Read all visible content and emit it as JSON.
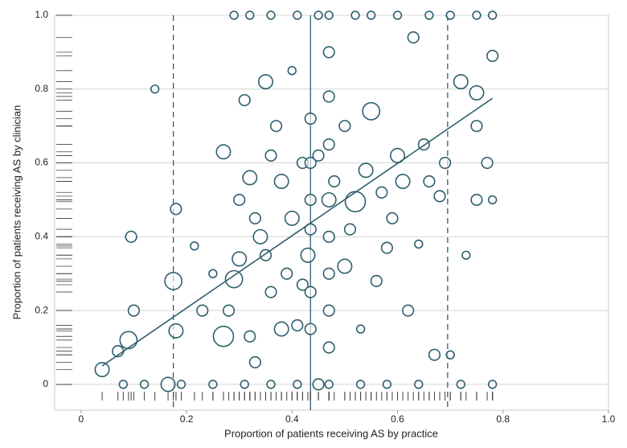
{
  "chart_data": {
    "type": "scatter",
    "x_label": "Proportion of patients receiving AS by practice",
    "y_label": "Proportion of patients receiving AS by clinician",
    "xlim": [
      -0.05,
      1.0
    ],
    "ylim": [
      -0.07,
      1.0
    ],
    "xticks": [
      0,
      0.2,
      0.4,
      0.6,
      0.8,
      {
        "value": 1,
        "label": "1.0"
      }
    ],
    "yticks": [
      0,
      0.2,
      0.4,
      0.6,
      0.8,
      {
        "value": 1,
        "label": "1.0"
      }
    ],
    "grid": true,
    "color": "#2e5e6e",
    "x": [
      0.04,
      0.07,
      0.09,
      0.1,
      0.095,
      0.14,
      0.165,
      0.175,
      0.18,
      0.18,
      0.215,
      0.23,
      0.27,
      0.27,
      0.29,
      0.3,
      0.3,
      0.31,
      0.32,
      0.33,
      0.34,
      0.35,
      0.36,
      0.37,
      0.38,
      0.39,
      0.4,
      0.41,
      0.42,
      0.43,
      0.435,
      0.435,
      0.435,
      0.435,
      0.435,
      0.435,
      0.45,
      0.47,
      0.47,
      0.47,
      0.47,
      0.47,
      0.47,
      0.47,
      0.47,
      0.48,
      0.5,
      0.52,
      0.54,
      0.55,
      0.56,
      0.58,
      0.6,
      0.62,
      0.63,
      0.65,
      0.67,
      0.68,
      0.7,
      0.72,
      0.75,
      0.75,
      0.75,
      0.77,
      0.78,
      0.78,
      0.29,
      0.32,
      0.36,
      0.41,
      0.45,
      0.47,
      0.52,
      0.55,
      0.6,
      0.66,
      0.7,
      0.75,
      0.78,
      0.08,
      0.12,
      0.19,
      0.25,
      0.31,
      0.36,
      0.41,
      0.47,
      0.53,
      0.58,
      0.64,
      0.72,
      0.78,
      0.25,
      0.28,
      0.33,
      0.36,
      0.38,
      0.4,
      0.42,
      0.45,
      0.5,
      0.51,
      0.53,
      0.57,
      0.59,
      0.61,
      0.64,
      0.66,
      0.69,
      0.73,
      0.32,
      0.35
    ],
    "y": [
      0.04,
      0.09,
      0.12,
      0.2,
      0.4,
      0.8,
      0.0,
      0.28,
      0.475,
      0.145,
      0.375,
      0.2,
      0.13,
      0.63,
      0.285,
      0.5,
      0.34,
      0.77,
      0.56,
      0.06,
      0.4,
      0.82,
      0.25,
      0.7,
      0.55,
      0.3,
      0.45,
      0.16,
      0.6,
      0.35,
      0.5,
      0.72,
      0.25,
      0.42,
      0.6,
      0.15,
      0.0,
      0.1,
      0.3,
      0.5,
      0.65,
      0.78,
      0.9,
      0.2,
      0.4,
      0.55,
      0.32,
      0.495,
      0.58,
      0.74,
      0.28,
      0.37,
      0.62,
      0.2,
      0.94,
      0.65,
      0.08,
      0.51,
      0.08,
      0.82,
      0.79,
      0.7,
      0.5,
      0.6,
      0.5,
      0.89,
      1.0,
      1.0,
      1.0,
      1.0,
      1.0,
      1.0,
      1.0,
      1.0,
      1.0,
      1.0,
      1.0,
      1.0,
      1.0,
      0.0,
      0.0,
      0.0,
      0.0,
      0.0,
      0.0,
      0.0,
      0.0,
      0.0,
      0.0,
      0.0,
      0.0,
      0.0,
      0.3,
      0.2,
      0.45,
      0.62,
      0.15,
      0.85,
      0.27,
      0.62,
      0.7,
      0.42,
      0.15,
      0.52,
      0.45,
      0.55,
      0.38,
      0.55,
      0.6,
      0.35,
      0.13,
      0.35
    ],
    "sizes": [
      3,
      2,
      4,
      2,
      2,
      1,
      3,
      4,
      2,
      3,
      1,
      2,
      5,
      3,
      4,
      2,
      3,
      2,
      3,
      2,
      3,
      3,
      2,
      2,
      3,
      2,
      3,
      2,
      2,
      3,
      2,
      2,
      2,
      2,
      2,
      2,
      2,
      2,
      2,
      3,
      2,
      2,
      2,
      2,
      2,
      2,
      3,
      5,
      3,
      4,
      2,
      2,
      3,
      2,
      2,
      2,
      2,
      2,
      1,
      3,
      3,
      2,
      2,
      2,
      1,
      2,
      1,
      1,
      1,
      1,
      1,
      1,
      1,
      1,
      1,
      1,
      1,
      1,
      1,
      1,
      1,
      1,
      1,
      1,
      1,
      1,
      1,
      1,
      1,
      1,
      1,
      1,
      1,
      2,
      2,
      2,
      3,
      1,
      2,
      2,
      2,
      2,
      1,
      2,
      2,
      3,
      1,
      2,
      2,
      1,
      2,
      2
    ],
    "fit_line": {
      "x": [
        0.04,
        0.78
      ],
      "y": [
        0.05,
        0.775
      ]
    },
    "reference_lines": [
      {
        "x": 0.175,
        "style": "dashed"
      },
      {
        "x": 0.435,
        "style": "solid"
      },
      {
        "x": 0.695,
        "style": "dashed"
      }
    ]
  }
}
